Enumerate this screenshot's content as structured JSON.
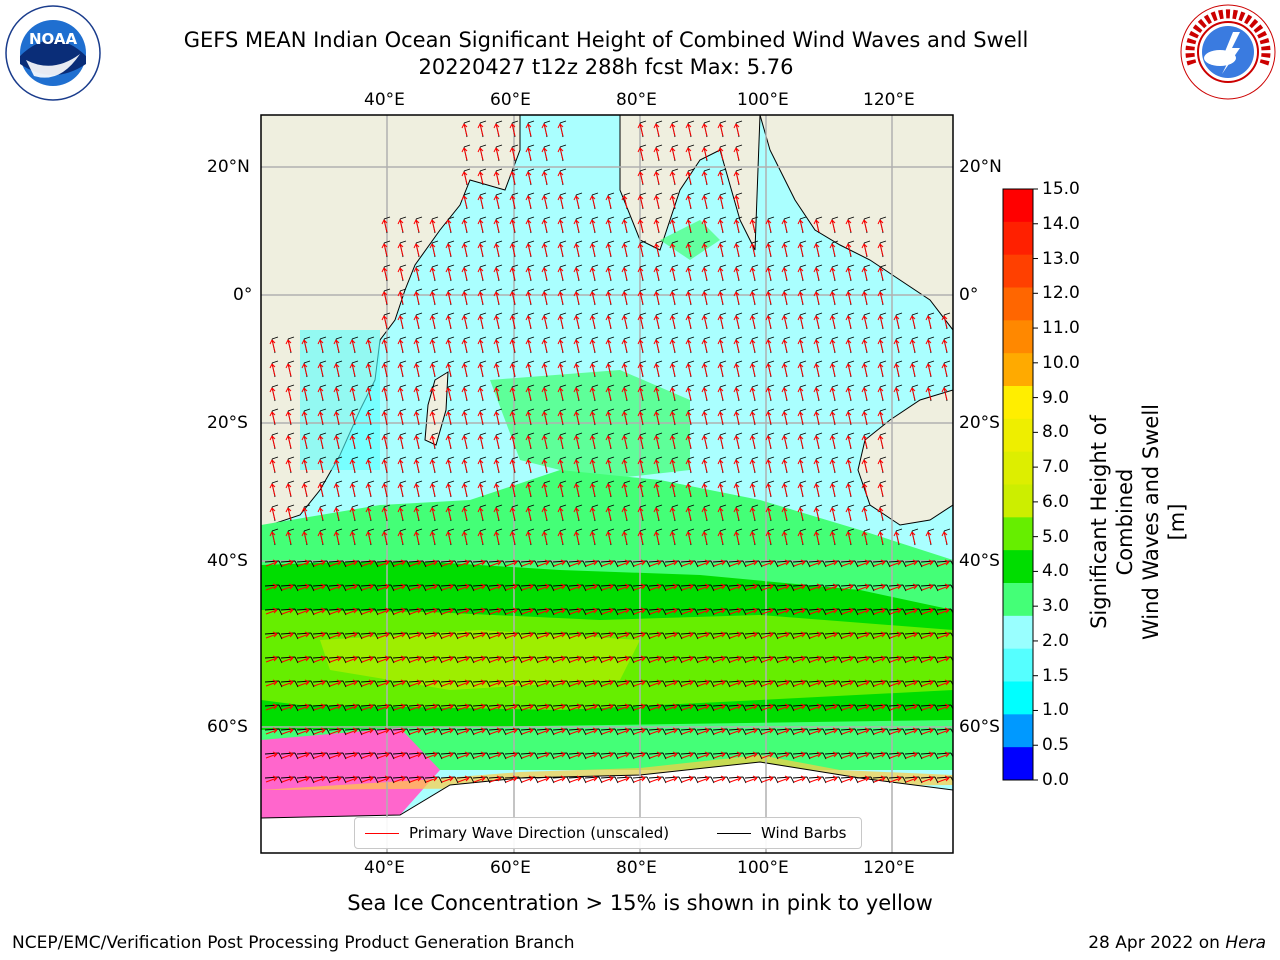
{
  "title_line1": "GEFS MEAN Indian Ocean Significant Height of Combined Wind Waves and Swell",
  "title_line2": "20220427 t12z 288h fcst   Max: 5.76",
  "logos": {
    "left": "noaa-logo",
    "right": "national-weather-service-logo"
  },
  "logo_text": {
    "noaa": "NOAA",
    "nws_ring": "NATIONAL WEATHER SERVICE"
  },
  "lon_ticks": [
    "40°E",
    "60°E",
    "80°E",
    "100°E",
    "120°E"
  ],
  "lat_ticks": [
    "20°N",
    "0°",
    "20°S",
    "40°S",
    "60°S"
  ],
  "colorbar": {
    "title_line1": "Significant Height of Combined",
    "title_line2": "Wind Waves and Swell [m]",
    "labels": [
      "15.0",
      "14.0",
      "13.0",
      "12.0",
      "11.0",
      "10.0",
      "9.0",
      "8.0",
      "7.0",
      "6.0",
      "5.0",
      "4.0",
      "3.0",
      "2.0",
      "1.5",
      "1.0",
      "0.5",
      "0.0"
    ],
    "colors_top_to_bottom": [
      "#ff0000",
      "#ff2000",
      "#ff4000",
      "#ff6600",
      "#ff8800",
      "#ffaa00",
      "#ffee00",
      "#eeee00",
      "#ddee00",
      "#ccee00",
      "#66ee00",
      "#00dd00",
      "#44ff77",
      "#99ffff",
      "#55ffff",
      "#00ffff",
      "#0099ff",
      "#0000ff"
    ]
  },
  "legend": {
    "primary_wave": "Primary Wave Direction (unscaled)",
    "wind_barbs": "Wind Barbs",
    "primary_wave_color": "#ff0000",
    "wind_barb_color": "#000000"
  },
  "caption": "Sea Ice Concentration > 15% is shown in pink to yellow",
  "footer_left": "NCEP/EMC/Verification Post Processing Product Generation Branch",
  "footer_right_prefix": "28 Apr 2022 on ",
  "footer_right_host": "Hera",
  "map_colors": {
    "land": "#efefdf",
    "ice_shelf": "#ffffff",
    "sea_ice": "#ff66cc"
  }
}
